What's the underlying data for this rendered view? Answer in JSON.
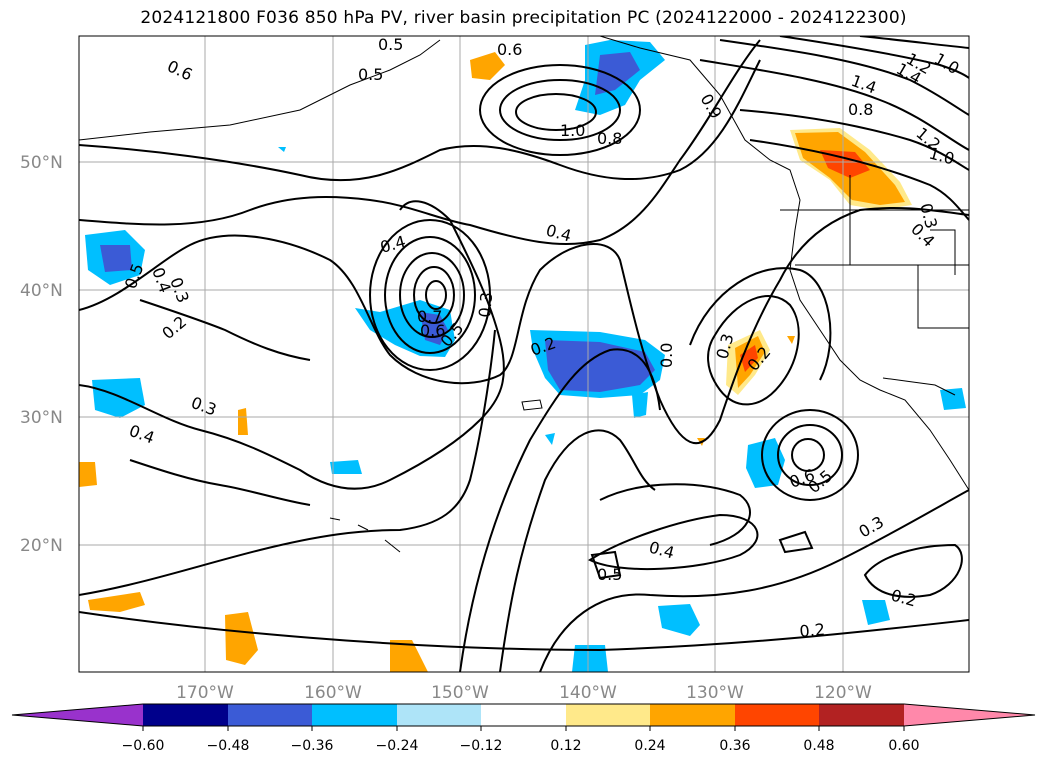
{
  "title": "2024121800 F036 850 hPa PV, river basin precipitation PC (2024122000 - 2024122300)",
  "map": {
    "lat_labels": [
      "50°N",
      "40°N",
      "30°N",
      "20°N"
    ],
    "lon_labels": [
      "170°W",
      "160°W",
      "150°W",
      "140°W",
      "130°W",
      "120°W"
    ],
    "contour_labels": [
      "0.6",
      "0.5",
      "0.5",
      "0.6",
      "1.0",
      "0.8",
      "0.4",
      "0.4",
      "0.3",
      "0.5",
      "0.4",
      "0.2",
      "0.3",
      "0.4",
      "0.7",
      "0.6",
      "0.5",
      "0.3",
      "0.2",
      "0.0",
      "0.3",
      "0.2",
      "0.6",
      "0.5",
      "0.4",
      "0.5",
      "0.3",
      "0.2",
      "0.2",
      "1.4",
      "1.4",
      "1.2",
      "1.0",
      "1.2",
      "1.0",
      "0.8",
      "0.9",
      "0.3",
      "0.4"
    ]
  },
  "colorbar": {
    "ticks": [
      "−0.60",
      "−0.48",
      "−0.36",
      "−0.24",
      "−0.12",
      "0.12",
      "0.24",
      "0.36",
      "0.48",
      "0.60"
    ],
    "colors": [
      "#9932cc",
      "#00008b",
      "#3b5bd6",
      "#00bfff",
      "#aee4f8",
      "#ffffff",
      "#ffe98a",
      "#ffa500",
      "#ff4500",
      "#b22222",
      "#ff88aa"
    ]
  }
}
